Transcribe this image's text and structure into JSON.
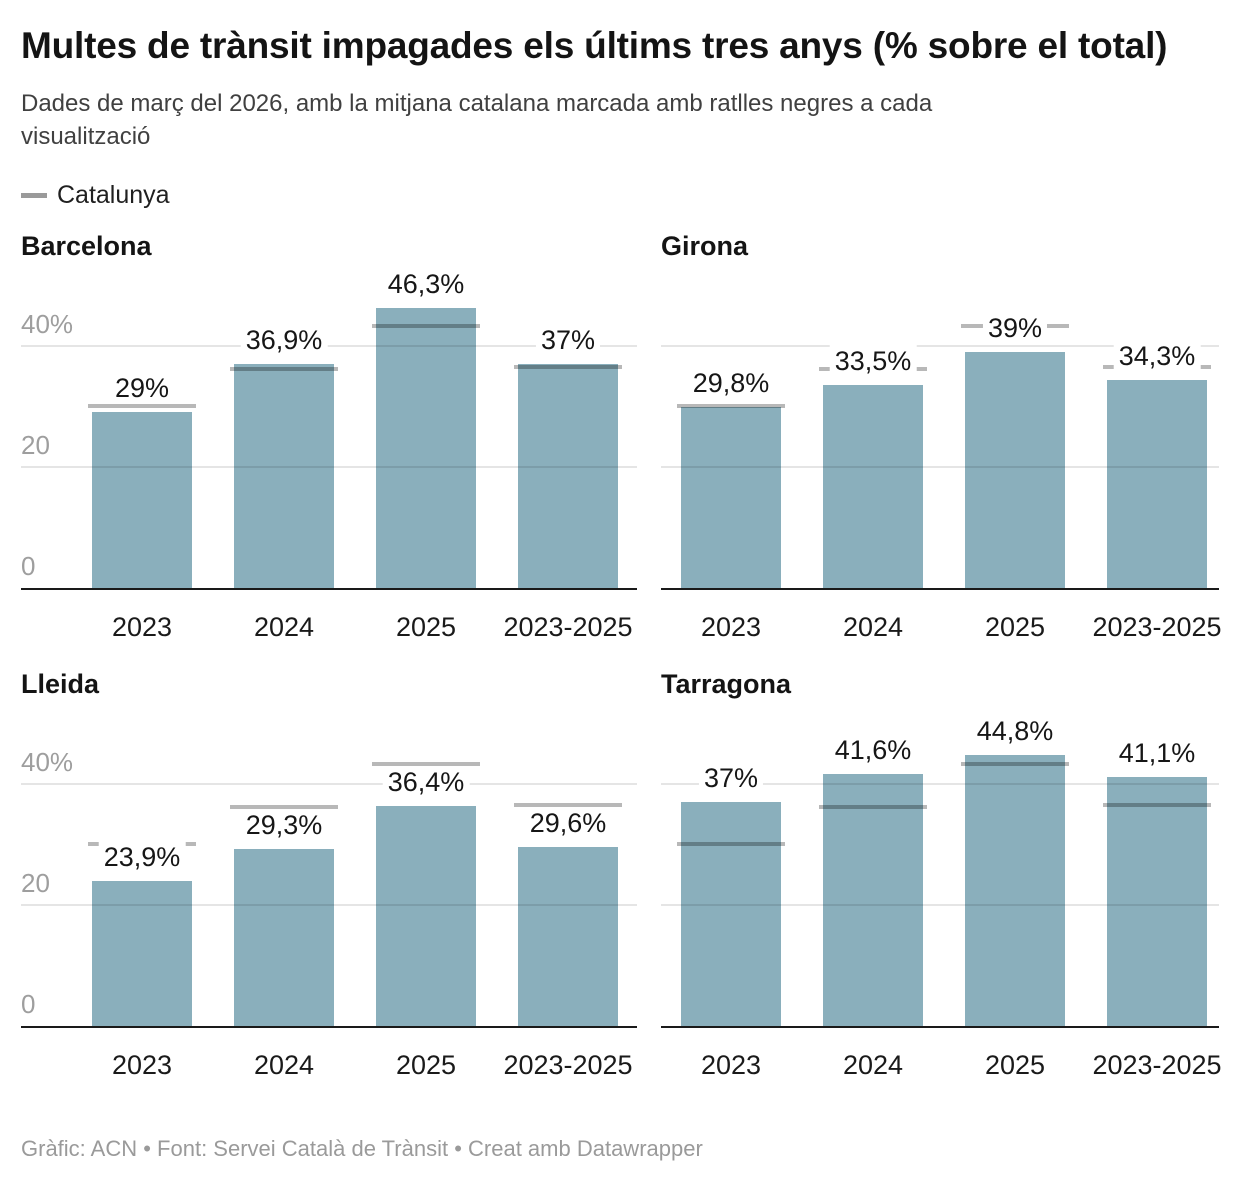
{
  "header": {
    "title": "Multes de trànsit impagades els últims tres anys (% sobre el total)",
    "subtitle": "Dades de març del 2026, amb la mitjana catalana marcada amb ratlles negres a cada visualització",
    "legend": {
      "label": "Catalunya",
      "dash_color": "#9a9a9a"
    }
  },
  "footer": {
    "text": "Gràfic: ACN • Font: Servei Català de Trànsit • Creat amb Datawrapper"
  },
  "colors": {
    "bar": "#8aafbc",
    "reference_line": "rgba(0,0,0,0.28)",
    "gridline": "rgba(17,17,17,0.11)",
    "axis_baseline": "#1a1a1a",
    "tick_label": "#9e9e9e",
    "text": "#141414"
  },
  "chart_data": {
    "type": "bar",
    "title": "Multes de trànsit impagades els últims tres anys (% sobre el total)",
    "subtitle": "Dades de març del 2026, amb la mitjana catalana marcada amb ratlles negres a cada visualització",
    "unit": "%",
    "categories": [
      "2023",
      "2024",
      "2025",
      "2023-2025"
    ],
    "ylim": [
      0,
      51.5
    ],
    "grid": true,
    "legend_position": "top-left",
    "yticks": [
      {
        "value": 40,
        "label": "40%"
      },
      {
        "value": 20,
        "label": "20"
      },
      {
        "value": 0,
        "label": "0"
      }
    ],
    "reference": {
      "name": "Catalunya",
      "values": [
        30,
        36.2,
        43.2,
        36.5
      ]
    },
    "panels": [
      {
        "title": "Barcelona",
        "values": [
          29,
          36.9,
          46.3,
          37
        ],
        "labels": [
          "29%",
          "36,9%",
          "46,3%",
          "37%"
        ],
        "show_y_labels": true
      },
      {
        "title": "Girona",
        "values": [
          29.8,
          33.5,
          39,
          34.3
        ],
        "labels": [
          "29,8%",
          "33,5%",
          "39%",
          "34,3%"
        ],
        "show_y_labels": false
      },
      {
        "title": "Lleida",
        "values": [
          23.9,
          29.3,
          36.4,
          29.6
        ],
        "labels": [
          "23,9%",
          "29,3%",
          "36,4%",
          "29,6%"
        ],
        "show_y_labels": true
      },
      {
        "title": "Tarragona",
        "values": [
          37,
          41.6,
          44.8,
          41.1
        ],
        "labels": [
          "37%",
          "41,6%",
          "44,8%",
          "41,1%"
        ],
        "show_y_labels": false
      }
    ]
  }
}
